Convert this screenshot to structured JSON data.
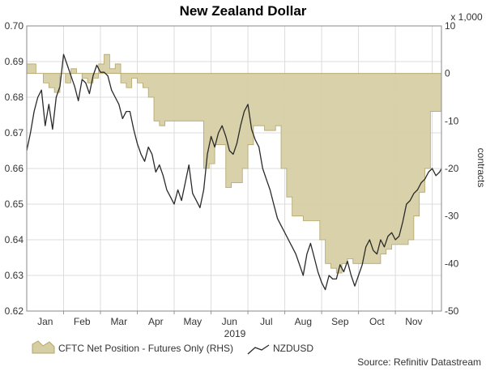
{
  "chart_data": {
    "type": "line",
    "title": "New Zealand Dollar",
    "xlabel": "2019",
    "x_ticks": [
      "Jan",
      "Feb",
      "Mar",
      "Apr",
      "May",
      "Jun",
      "Jul",
      "Aug",
      "Sep",
      "Oct",
      "Nov"
    ],
    "ylabel_left": "",
    "ylabel_right": "contracts",
    "right_axis_unit": "x 1,000",
    "ylim_left": [
      0.62,
      0.7
    ],
    "ylim_right": [
      -50,
      10
    ],
    "y_ticks_left": [
      "0.70",
      "0.69",
      "0.68",
      "0.67",
      "0.66",
      "0.65",
      "0.64",
      "0.63",
      "0.62"
    ],
    "y_ticks_right": [
      "10",
      "0",
      "-10",
      "-20",
      "-30",
      "-40",
      "-50"
    ],
    "grid": true,
    "legend_position": "bottom-left",
    "source_note": "Source: Refinitiv Datastream",
    "series": [
      {
        "name": "CFTC Net Position - Futures Only (RHS)",
        "kind": "step-area",
        "axis": "right",
        "color": "#d6cfa4",
        "edge_color": "#b3a56a",
        "x": [
          0.0,
          0.25,
          0.45,
          0.6,
          0.75,
          0.9,
          1.05,
          1.2,
          1.35,
          1.5,
          1.65,
          1.8,
          1.95,
          2.1,
          2.25,
          2.4,
          2.55,
          2.7,
          2.85,
          3.0,
          3.15,
          3.3,
          3.45,
          3.6,
          3.75,
          3.9,
          4.05,
          4.2,
          4.35,
          4.5,
          4.65,
          4.8,
          4.95,
          5.1,
          5.25,
          5.4,
          5.55,
          5.7,
          5.85,
          6.0,
          6.15,
          6.3,
          6.45,
          6.6,
          6.75,
          6.9,
          7.05,
          7.2,
          7.35,
          7.5,
          7.65,
          7.8,
          7.95,
          8.1,
          8.25,
          8.4,
          8.55,
          8.7,
          8.85,
          9.0,
          9.15,
          9.3,
          9.45,
          9.6,
          9.75,
          9.9,
          10.05,
          10.2,
          10.35,
          10.5,
          10.65,
          10.8,
          10.95,
          11.1,
          11.25
        ],
        "values": [
          2,
          0,
          -2,
          -3,
          -4,
          0,
          -2,
          1,
          0,
          -1,
          -2,
          -1,
          2,
          4,
          1,
          2,
          -2,
          -3,
          -1,
          -2,
          -3,
          -5,
          -10,
          -11,
          -10,
          -10,
          -10,
          -10,
          -10,
          -10,
          -10,
          -20,
          -19,
          -15,
          -15,
          -24,
          -23,
          -23,
          -20,
          -15,
          -11,
          -11,
          -12,
          -12,
          -11,
          -20,
          -26,
          -30,
          -30,
          -31,
          -31,
          -31,
          -35,
          -40,
          -41,
          -42,
          -40,
          -39,
          -40,
          -40,
          -40,
          -40,
          -40,
          -38,
          -37,
          -36,
          -36,
          -36,
          -35,
          -30,
          -25,
          -20,
          -8,
          -8,
          -8
        ]
      },
      {
        "name": "NZDUSD",
        "kind": "line",
        "axis": "left",
        "color": "#2a2a2a",
        "x": [
          0.0,
          0.1,
          0.2,
          0.3,
          0.4,
          0.5,
          0.6,
          0.7,
          0.8,
          0.9,
          1.0,
          1.1,
          1.2,
          1.3,
          1.4,
          1.5,
          1.6,
          1.7,
          1.8,
          1.9,
          2.0,
          2.1,
          2.2,
          2.3,
          2.4,
          2.5,
          2.6,
          2.7,
          2.8,
          2.9,
          3.0,
          3.1,
          3.2,
          3.3,
          3.4,
          3.5,
          3.6,
          3.7,
          3.8,
          3.9,
          4.0,
          4.1,
          4.2,
          4.3,
          4.4,
          4.5,
          4.6,
          4.7,
          4.8,
          4.9,
          5.0,
          5.1,
          5.2,
          5.3,
          5.4,
          5.5,
          5.6,
          5.7,
          5.8,
          5.9,
          6.0,
          6.1,
          6.2,
          6.3,
          6.4,
          6.5,
          6.6,
          6.7,
          6.8,
          6.9,
          7.0,
          7.1,
          7.2,
          7.3,
          7.4,
          7.5,
          7.6,
          7.7,
          7.8,
          7.9,
          8.0,
          8.1,
          8.2,
          8.3,
          8.4,
          8.5,
          8.6,
          8.7,
          8.8,
          8.9,
          9.0,
          9.1,
          9.2,
          9.3,
          9.4,
          9.5,
          9.6,
          9.7,
          9.8,
          9.9,
          10.0,
          10.1,
          10.2,
          10.3,
          10.4,
          10.5,
          10.6,
          10.7,
          10.8,
          10.9,
          11.0,
          11.1,
          11.2,
          11.25
        ],
        "values": [
          0.665,
          0.67,
          0.676,
          0.68,
          0.682,
          0.672,
          0.678,
          0.671,
          0.68,
          0.683,
          0.692,
          0.689,
          0.686,
          0.683,
          0.679,
          0.685,
          0.684,
          0.681,
          0.686,
          0.689,
          0.687,
          0.687,
          0.686,
          0.682,
          0.68,
          0.678,
          0.674,
          0.676,
          0.676,
          0.671,
          0.667,
          0.664,
          0.662,
          0.666,
          0.664,
          0.659,
          0.661,
          0.658,
          0.654,
          0.652,
          0.65,
          0.654,
          0.651,
          0.656,
          0.661,
          0.653,
          0.651,
          0.649,
          0.654,
          0.664,
          0.669,
          0.666,
          0.67,
          0.672,
          0.669,
          0.665,
          0.664,
          0.667,
          0.672,
          0.676,
          0.678,
          0.671,
          0.668,
          0.666,
          0.66,
          0.657,
          0.654,
          0.65,
          0.646,
          0.644,
          0.642,
          0.64,
          0.638,
          0.636,
          0.633,
          0.63,
          0.636,
          0.639,
          0.635,
          0.631,
          0.628,
          0.626,
          0.63,
          0.629,
          0.629,
          0.633,
          0.631,
          0.634,
          0.63,
          0.627,
          0.63,
          0.633,
          0.638,
          0.64,
          0.637,
          0.636,
          0.64,
          0.638,
          0.641,
          0.642,
          0.64,
          0.641,
          0.645,
          0.65,
          0.651,
          0.653,
          0.654,
          0.656,
          0.657,
          0.659,
          0.66,
          0.658,
          0.659,
          0.66
        ]
      }
    ]
  }
}
